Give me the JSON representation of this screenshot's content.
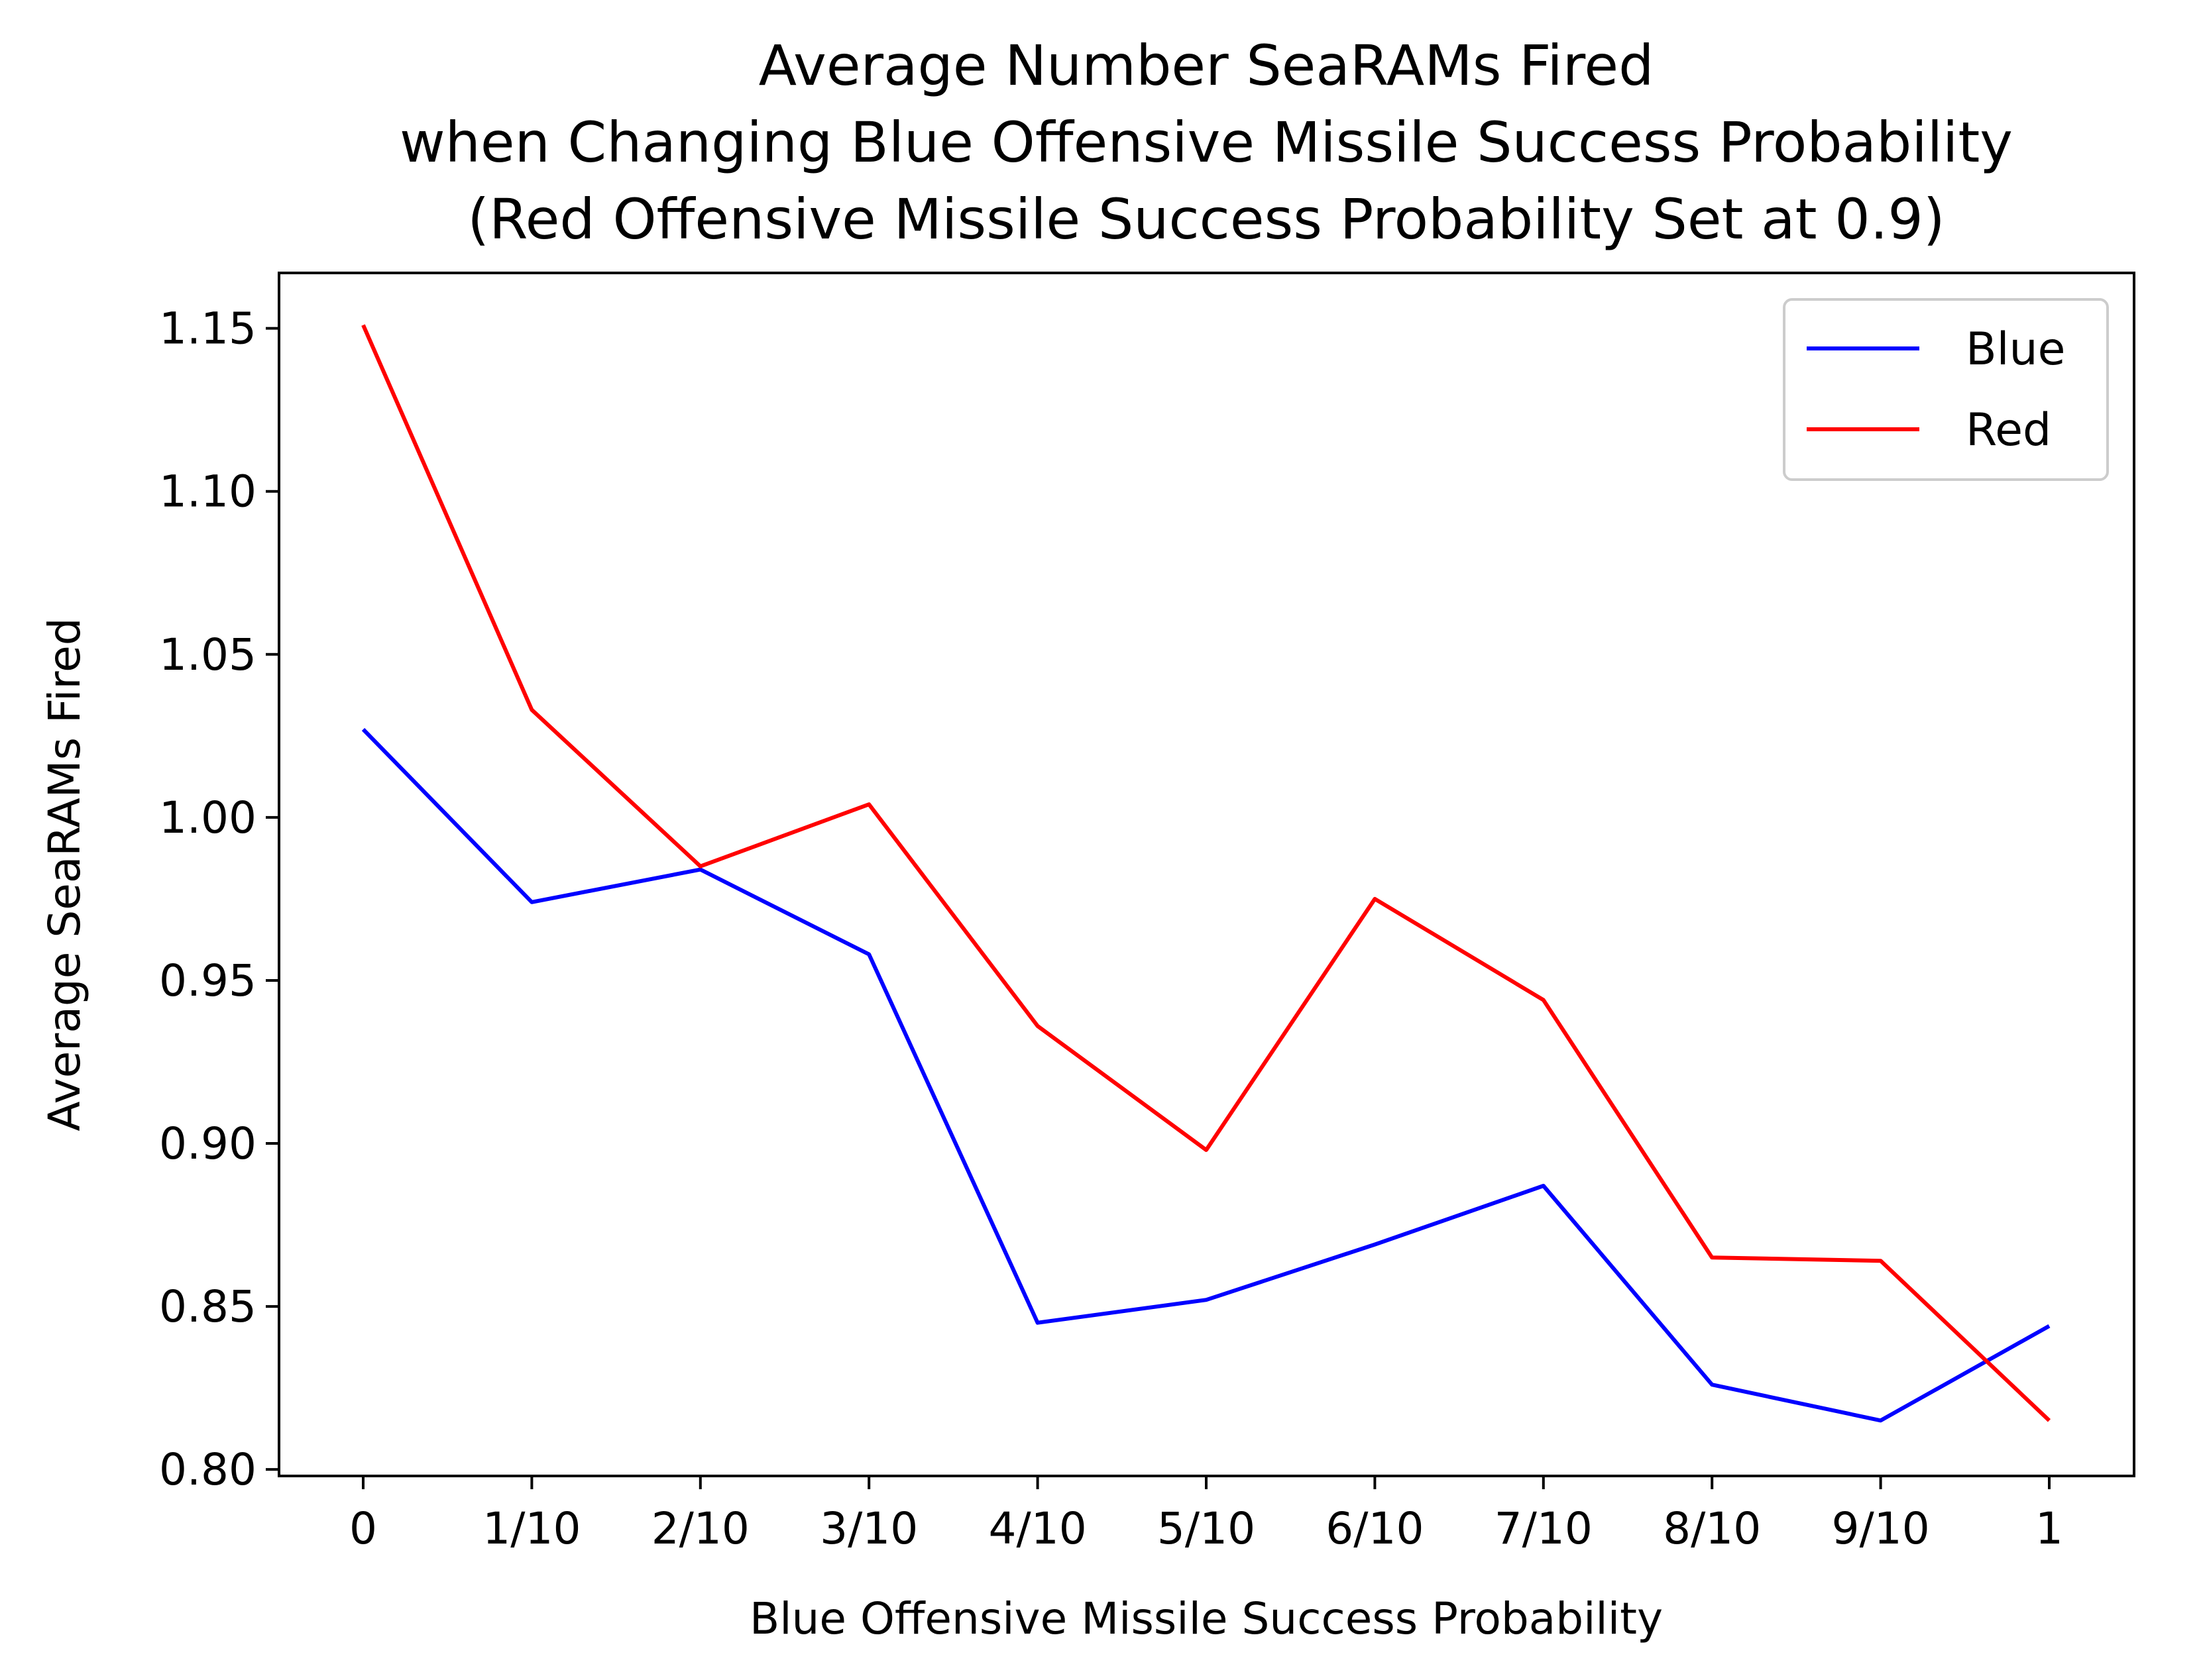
{
  "chart_data": {
    "type": "line",
    "title_lines": [
      "Average Number SeaRAMs Fired",
      "when Changing Blue Offensive Missile Success Probability",
      "(Red Offensive Missile Success Probability Set at 0.9)"
    ],
    "xlabel": "Blue Offensive Missile Success Probability",
    "ylabel": "Average SeaRAMs Fired",
    "categories": [
      "0",
      "1/10",
      "2/10",
      "3/10",
      "4/10",
      "5/10",
      "6/10",
      "7/10",
      "8/10",
      "9/10",
      "1"
    ],
    "ylim": [
      0.798,
      1.167
    ],
    "yticks": [
      "0.80",
      "0.85",
      "0.90",
      "0.95",
      "1.00",
      "1.05",
      "1.10",
      "1.15"
    ],
    "ytick_values": [
      0.8,
      0.85,
      0.9,
      0.95,
      1.0,
      1.05,
      1.1,
      1.15
    ],
    "grid": false,
    "legend_position": "top-right",
    "series": [
      {
        "name": "Blue",
        "color": "#0000ff",
        "values": [
          1.027,
          0.974,
          0.984,
          0.958,
          0.845,
          0.852,
          0.869,
          0.887,
          0.826,
          0.815,
          0.844
        ]
      },
      {
        "name": "Red",
        "color": "#ff0000",
        "values": [
          1.151,
          1.033,
          0.985,
          1.004,
          0.936,
          0.898,
          0.975,
          0.944,
          0.865,
          0.864,
          0.815
        ]
      }
    ]
  }
}
